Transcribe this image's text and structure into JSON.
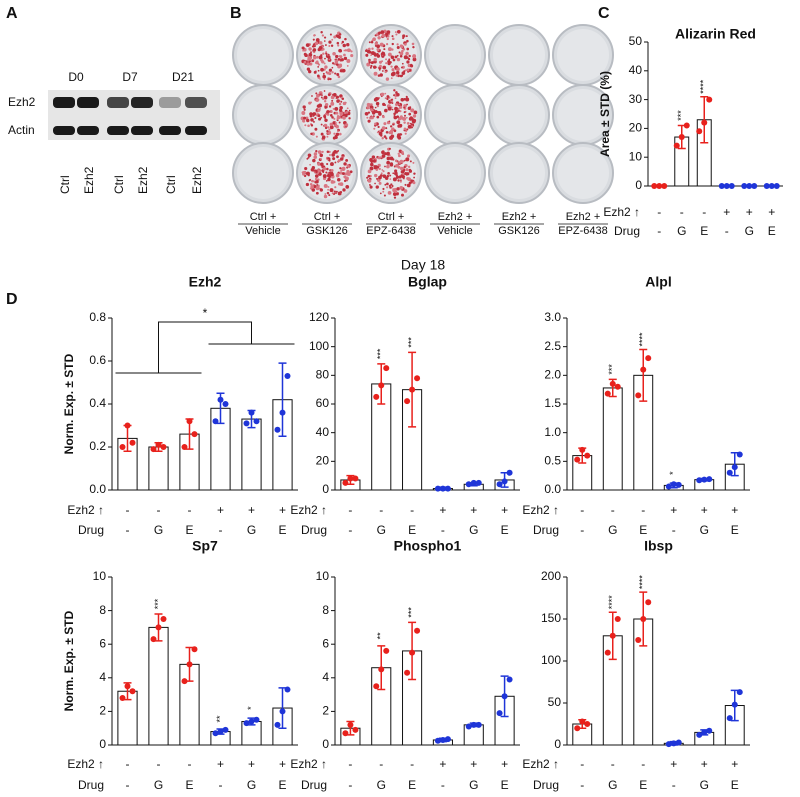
{
  "panel_labels": [
    "A",
    "B",
    "C",
    "D"
  ],
  "blot": {
    "timepoints": [
      "D0",
      "D7",
      "D21"
    ],
    "rows": [
      "Ezh2",
      "Actin"
    ],
    "lanes": [
      "Ctrl",
      "Ezh2",
      "Ctrl",
      "Ezh2",
      "Ctrl",
      "Ezh2"
    ]
  },
  "plates": {
    "conditions": [
      [
        "Ctrl +",
        "Vehicle"
      ],
      [
        "Ctrl +",
        "GSK126"
      ],
      [
        "Ctrl +",
        "EPZ-6438"
      ],
      [
        "Ezh2 +",
        "Vehicle"
      ],
      [
        "Ezh2 +",
        "GSK126"
      ],
      [
        "Ezh2 +",
        "EPZ-6438"
      ]
    ],
    "day": "Day 18"
  },
  "chart_data": [
    {
      "type": "bar",
      "title": "Alizarin Red",
      "ylabel": "Area ± STD (%)",
      "category_rows": [
        {
          "label": "Ezh2 ↑",
          "values": [
            "-",
            "-",
            "-",
            "+",
            "+",
            "+"
          ]
        },
        {
          "label": "Drug",
          "values": [
            "-",
            "G",
            "E",
            "-",
            "G",
            "E"
          ]
        }
      ],
      "values": [
        0,
        17,
        23,
        0,
        0,
        0
      ],
      "errors": [
        0,
        4,
        8,
        0,
        0,
        0
      ],
      "points": [
        [
          0,
          0,
          0
        ],
        [
          14,
          17,
          21
        ],
        [
          19,
          22,
          30
        ],
        [
          0,
          0,
          0
        ],
        [
          0,
          0,
          0
        ],
        [
          0,
          0,
          0
        ]
      ],
      "stars": [
        null,
        "***",
        "****",
        null,
        null,
        null
      ],
      "colors": [
        "#e8211c",
        "#e8211c",
        "#e8211c",
        "#1f35d8",
        "#1f35d8",
        "#1f35d8"
      ],
      "ylim": [
        0,
        50
      ],
      "yticks": [
        0,
        10,
        20,
        30,
        40,
        50
      ]
    },
    {
      "type": "bar",
      "title": "Ezh2",
      "ylabel": "Norm. Exp. ± STD",
      "category_rows": [
        {
          "label": "Ezh2 ↑",
          "values": [
            "-",
            "-",
            "-",
            "+",
            "+",
            "+"
          ]
        },
        {
          "label": "Drug",
          "values": [
            "-",
            "G",
            "E",
            "-",
            "G",
            "E"
          ]
        }
      ],
      "values": [
        0.24,
        0.2,
        0.26,
        0.38,
        0.33,
        0.42
      ],
      "errors": [
        0.06,
        0.02,
        0.07,
        0.07,
        0.04,
        0.17
      ],
      "points": [
        [
          0.2,
          0.3,
          0.22
        ],
        [
          0.19,
          0.21,
          0.2
        ],
        [
          0.2,
          0.32,
          0.26
        ],
        [
          0.32,
          0.42,
          0.4
        ],
        [
          0.31,
          0.36,
          0.32
        ],
        [
          0.28,
          0.36,
          0.53
        ]
      ],
      "stars": [
        null,
        null,
        null,
        null,
        null,
        null
      ],
      "bracket_label": "*",
      "colors": [
        "#e8211c",
        "#e8211c",
        "#e8211c",
        "#1f35d8",
        "#1f35d8",
        "#1f35d8"
      ],
      "ylim": [
        0,
        0.8
      ],
      "yticks": [
        {
          "value": 0,
          "label": "0.0"
        },
        0.2,
        0.4,
        0.6,
        0.8
      ]
    },
    {
      "type": "bar",
      "title": "Bglap",
      "category_rows": [
        {
          "label": "Ezh2 ↑",
          "values": [
            "-",
            "-",
            "-",
            "+",
            "+",
            "+"
          ]
        },
        {
          "label": "Drug",
          "values": [
            "-",
            "G",
            "E",
            "-",
            "G",
            "E"
          ]
        }
      ],
      "values": [
        7,
        74,
        70,
        1,
        4,
        7
      ],
      "errors": [
        3,
        14,
        26,
        1,
        1,
        5
      ],
      "points": [
        [
          5,
          8,
          8
        ],
        [
          65,
          73,
          85
        ],
        [
          62,
          70,
          78
        ],
        [
          1,
          1,
          1
        ],
        [
          4,
          5,
          5
        ],
        [
          4,
          6,
          12
        ]
      ],
      "stars": [
        null,
        "***",
        "***",
        null,
        null,
        null
      ],
      "colors": [
        "#e8211c",
        "#e8211c",
        "#e8211c",
        "#1f35d8",
        "#1f35d8",
        "#1f35d8"
      ],
      "ylim": [
        0,
        120
      ],
      "yticks": [
        0,
        20,
        40,
        60,
        80,
        100,
        120
      ]
    },
    {
      "type": "bar",
      "title": "Alpl",
      "category_rows": [
        {
          "label": "Ezh2 ↑",
          "values": [
            "-",
            "-",
            "-",
            "+",
            "+",
            "+"
          ]
        },
        {
          "label": "Drug",
          "values": [
            "-",
            "G",
            "E",
            "-",
            "G",
            "E"
          ]
        }
      ],
      "values": [
        0.6,
        1.78,
        2.0,
        0.08,
        0.18,
        0.45
      ],
      "errors": [
        0.13,
        0.15,
        0.45,
        0.04,
        0.02,
        0.2
      ],
      "points": [
        [
          0.53,
          0.7,
          0.6
        ],
        [
          1.68,
          1.85,
          1.8
        ],
        [
          1.65,
          2.1,
          2.3
        ],
        [
          0.06,
          0.1,
          0.09
        ],
        [
          0.17,
          0.18,
          0.19
        ],
        [
          0.3,
          0.4,
          0.62
        ]
      ],
      "stars": [
        null,
        "***",
        "****",
        "*",
        null,
        null
      ],
      "colors": [
        "#e8211c",
        "#e8211c",
        "#e8211c",
        "#1f35d8",
        "#1f35d8",
        "#1f35d8"
      ],
      "ylim": [
        0,
        3
      ],
      "yticks": [
        {
          "value": 0,
          "label": "0.0"
        },
        0.5,
        {
          "value": 1,
          "label": "1.0"
        },
        1.5,
        {
          "value": 2,
          "label": "2.0"
        },
        2.5,
        {
          "value": 3,
          "label": "3.0"
        }
      ]
    },
    {
      "type": "bar",
      "title": "Sp7",
      "ylabel": "Norm. Exp. ± STD",
      "category_rows": [
        {
          "label": "Ezh2 ↑",
          "values": [
            "-",
            "-",
            "-",
            "+",
            "+",
            "+"
          ]
        },
        {
          "label": "Drug",
          "values": [
            "-",
            "G",
            "E",
            "-",
            "G",
            "E"
          ]
        }
      ],
      "values": [
        3.2,
        7.0,
        4.8,
        0.8,
        1.4,
        2.2
      ],
      "errors": [
        0.5,
        0.8,
        1.0,
        0.15,
        0.2,
        1.2
      ],
      "points": [
        [
          2.8,
          3.5,
          3.2
        ],
        [
          6.3,
          7.0,
          7.5
        ],
        [
          3.8,
          4.8,
          5.7
        ],
        [
          0.7,
          0.8,
          0.9
        ],
        [
          1.3,
          1.4,
          1.5
        ],
        [
          1.2,
          2.0,
          3.3
        ]
      ],
      "stars": [
        null,
        "***",
        null,
        "**",
        "*",
        null
      ],
      "colors": [
        "#e8211c",
        "#e8211c",
        "#e8211c",
        "#1f35d8",
        "#1f35d8",
        "#1f35d8"
      ],
      "ylim": [
        0,
        10
      ],
      "yticks": [
        0,
        2,
        4,
        6,
        8,
        10
      ]
    },
    {
      "type": "bar",
      "title": "Phospho1",
      "category_rows": [
        {
          "label": "Ezh2 ↑",
          "values": [
            "-",
            "-",
            "-",
            "+",
            "+",
            "+"
          ]
        },
        {
          "label": "Drug",
          "values": [
            "-",
            "G",
            "E",
            "-",
            "G",
            "E"
          ]
        }
      ],
      "values": [
        1.0,
        4.6,
        5.6,
        0.3,
        1.2,
        2.9
      ],
      "errors": [
        0.4,
        1.3,
        1.7,
        0.1,
        0.1,
        1.2
      ],
      "points": [
        [
          0.7,
          1.2,
          0.9
        ],
        [
          3.5,
          4.5,
          5.6
        ],
        [
          4.3,
          5.5,
          6.8
        ],
        [
          0.25,
          0.3,
          0.35
        ],
        [
          1.1,
          1.2,
          1.2
        ],
        [
          1.9,
          2.9,
          3.9
        ]
      ],
      "stars": [
        null,
        "**",
        "***",
        null,
        null,
        null
      ],
      "colors": [
        "#e8211c",
        "#e8211c",
        "#e8211c",
        "#1f35d8",
        "#1f35d8",
        "#1f35d8"
      ],
      "ylim": [
        0,
        10
      ],
      "yticks": [
        0,
        2,
        4,
        6,
        8,
        10
      ]
    },
    {
      "type": "bar",
      "title": "Ibsp",
      "category_rows": [
        {
          "label": "Ezh2 ↑",
          "values": [
            "-",
            "-",
            "-",
            "+",
            "+",
            "+"
          ]
        },
        {
          "label": "Drug",
          "values": [
            "-",
            "G",
            "E",
            "-",
            "G",
            "E"
          ]
        }
      ],
      "values": [
        25,
        130,
        150,
        2,
        15,
        47
      ],
      "errors": [
        5,
        28,
        32,
        2,
        3,
        18
      ],
      "points": [
        [
          20,
          28,
          25
        ],
        [
          110,
          130,
          150
        ],
        [
          125,
          150,
          170
        ],
        [
          1,
          2,
          3
        ],
        [
          12,
          15,
          17
        ],
        [
          32,
          48,
          63
        ]
      ],
      "stars": [
        null,
        "****",
        "****",
        null,
        null,
        null
      ],
      "colors": [
        "#e8211c",
        "#e8211c",
        "#e8211c",
        "#1f35d8",
        "#1f35d8",
        "#1f35d8"
      ],
      "ylim": [
        0,
        200
      ],
      "yticks": [
        0,
        50,
        100,
        150,
        200
      ]
    }
  ]
}
